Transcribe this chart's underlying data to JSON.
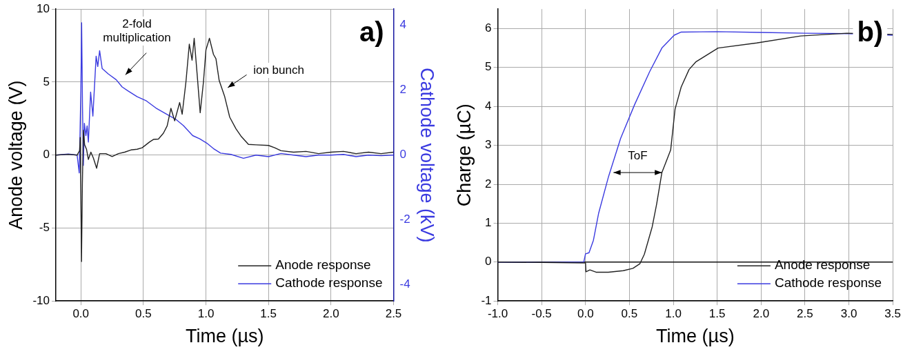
{
  "chart_data": [
    {
      "type": "line",
      "xlabel": "Time (µs)",
      "ylabel": "Anode voltage (V)",
      "y2label": "Cathode voltage (kV)",
      "xlim": [
        -0.2,
        2.5
      ],
      "xticks": [
        {
          "value": 0,
          "label": "0.0"
        },
        0.5,
        {
          "value": 1,
          "label": "1.0"
        },
        1.5,
        {
          "value": 2,
          "label": "2.0"
        },
        2.5
      ],
      "ylim": [
        -10,
        10
      ],
      "yticks": [
        -10,
        -5,
        0,
        5,
        10
      ],
      "y2lim": [
        -4.5,
        4.5
      ],
      "y2ticks": [
        -4,
        -2,
        0,
        2,
        4
      ],
      "grid": true,
      "legend": "bottom right",
      "marker": "none",
      "line_style": "solid",
      "series": [
        {
          "name": "Anode response",
          "color": "#222222",
          "x": [
            -0.2,
            -0.1,
            -0.03,
            -0.01,
            -0.005,
            0.0,
            0.005,
            0.012,
            0.02,
            0.03,
            0.045,
            0.06,
            0.08,
            0.1,
            0.126,
            0.15,
            0.2,
            0.25,
            0.3,
            0.35,
            0.4,
            0.45,
            0.49,
            0.55,
            0.58,
            0.62,
            0.66,
            0.69,
            0.72,
            0.75,
            0.79,
            0.81,
            0.84,
            0.867,
            0.889,
            0.906,
            0.93,
            0.954,
            0.98,
            1.0,
            1.028,
            1.06,
            1.08,
            1.106,
            1.15,
            1.19,
            1.24,
            1.28,
            1.34,
            1.4,
            1.5,
            1.55,
            1.6,
            1.7,
            1.8,
            1.9,
            2.0,
            2.1,
            2.2,
            2.3,
            2.4,
            2.5
          ],
          "values": [
            0,
            0.05,
            0,
            0.3,
            1.2,
            -3,
            -7.3,
            -2,
            1.7,
            0.7,
            0.4,
            -0.3,
            0.2,
            -0.2,
            -0.9,
            0.1,
            0.1,
            -0.1,
            0.1,
            0.2,
            0.35,
            0.4,
            0.5,
            0.9,
            1.07,
            1.1,
            1.5,
            2.0,
            3.2,
            2.35,
            3.6,
            2.8,
            5.0,
            7.6,
            6.5,
            8.0,
            5.5,
            2.9,
            5.0,
            7.2,
            8.0,
            6.9,
            6.6,
            5.1,
            4.0,
            2.6,
            1.8,
            1.3,
            0.73,
            0.7,
            0.66,
            0.5,
            0.3,
            0.2,
            0.25,
            0.1,
            0.2,
            0.25,
            0.1,
            0.2,
            0.1,
            0.2
          ]
        },
        {
          "name": "Cathode response",
          "color": "#3a3ae0",
          "axis": "y2",
          "x": [
            -0.2,
            -0.1,
            -0.03,
            -0.013,
            0.0,
            0.006,
            0.013,
            0.02,
            0.028,
            0.04,
            0.05,
            0.06,
            0.078,
            0.096,
            0.122,
            0.135,
            0.15,
            0.17,
            0.22,
            0.283,
            0.33,
            0.376,
            0.45,
            0.524,
            0.6,
            0.709,
            0.76,
            0.82,
            0.894,
            0.95,
            1.006,
            1.06,
            1.117,
            1.2,
            1.3,
            1.4,
            1.5,
            1.6,
            1.7,
            1.8,
            1.9,
            2.0,
            2.1,
            2.2,
            2.3,
            2.4,
            2.5
          ],
          "values": [
            0,
            0.03,
            0,
            -0.55,
            2.0,
            4.08,
            1.5,
            -0.32,
            0.98,
            0.6,
            0.9,
            0.4,
            1.94,
            1.2,
            3.05,
            2.73,
            3.22,
            2.67,
            2.5,
            2.32,
            2.1,
            1.98,
            1.8,
            1.67,
            1.45,
            1.21,
            1.1,
            0.91,
            0.6,
            0.5,
            0.37,
            0.2,
            0.06,
            0.02,
            -0.1,
            0,
            -0.05,
            0.05,
            0,
            -0.05,
            0,
            0,
            0.02,
            -0.05,
            0,
            -0.02,
            0
          ]
        }
      ],
      "annotations": [
        "a)",
        "2-fold multiplication",
        "ion bunch"
      ]
    },
    {
      "type": "line",
      "xlabel": "Time (µs)",
      "ylabel": "Charge (µC)",
      "xlim": [
        -1,
        3.5
      ],
      "xticks": [
        {
          "value": -1,
          "label": "-1.0"
        },
        -0.5,
        {
          "value": 0,
          "label": "0.0"
        },
        0.5,
        {
          "value": 1,
          "label": "1.0"
        },
        1.5,
        {
          "value": 2,
          "label": "2.0"
        },
        2.5,
        {
          "value": 3,
          "label": "3.0"
        },
        3.5
      ],
      "ylim": [
        -1,
        6.5
      ],
      "yticks": [
        -1,
        0,
        1,
        2,
        3,
        4,
        5,
        6
      ],
      "grid": true,
      "legend": "bottom right",
      "marker": "none",
      "line_style": "solid",
      "ref_lines": [
        {
          "axis": "y",
          "value": 0,
          "color": "#111111"
        }
      ],
      "series": [
        {
          "name": "Anode response",
          "color": "#222222",
          "x": [
            -1,
            -0.5,
            0,
            0.005,
            0.05,
            0.12,
            0.26,
            0.43,
            0.54,
            0.62,
            0.67,
            0.76,
            0.81,
            0.87,
            0.91,
            0.97,
            1.02,
            1.09,
            1.18,
            1.26,
            1.51,
            1.95,
            2.45,
            2.98,
            3.5
          ],
          "values": [
            0,
            -0.01,
            -0.02,
            -0.25,
            -0.2,
            -0.26,
            -0.26,
            -0.22,
            -0.16,
            -0.04,
            0.2,
            0.91,
            1.49,
            2.3,
            2.53,
            2.88,
            3.93,
            4.5,
            4.95,
            5.15,
            5.5,
            5.63,
            5.81,
            5.88,
            5.85
          ]
        },
        {
          "name": "Cathode response",
          "color": "#3a3ae0",
          "x": [
            -1,
            -0.5,
            -0.02,
            0.0,
            0.04,
            0.09,
            0.15,
            0.26,
            0.4,
            0.56,
            0.73,
            0.87,
            1.01,
            1.09,
            1.5,
            2.0,
            2.5,
            3.0,
            3.5
          ],
          "values": [
            0,
            -0.01,
            0,
            0.21,
            0.24,
            0.56,
            1.26,
            2.18,
            3.18,
            4.05,
            4.89,
            5.5,
            5.83,
            5.91,
            5.92,
            5.9,
            5.88,
            5.87,
            5.83
          ]
        }
      ],
      "annotations": [
        "b)",
        {
          "text": "ToF",
          "x": 0.87,
          "y": 2.3
        }
      ]
    }
  ]
}
